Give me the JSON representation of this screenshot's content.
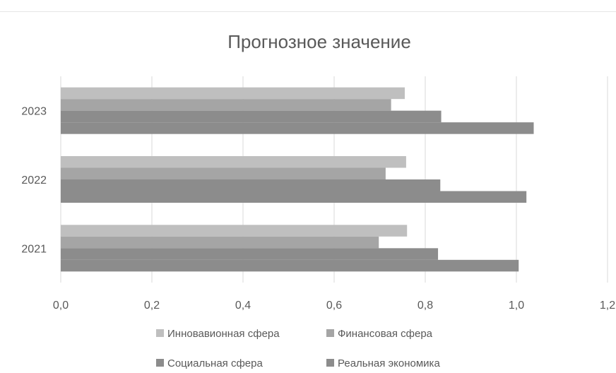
{
  "chart_data": {
    "type": "bar",
    "orientation": "horizontal",
    "title": "Прогнозное значение",
    "categories": [
      "2021",
      "2022",
      "2023"
    ],
    "series": [
      {
        "name": "Инновавионная сфера",
        "values": [
          0.76,
          0.758,
          0.755
        ],
        "color": "#bfbfbf"
      },
      {
        "name": "Финансовая сфера",
        "values": [
          0.698,
          0.713,
          0.725
        ],
        "color": "#a5a5a5"
      },
      {
        "name": "Социальная сфера",
        "values": [
          0.828,
          0.833,
          0.835
        ],
        "color": "#8c8c8c"
      },
      {
        "name": "Реальная экономика",
        "values": [
          1.005,
          1.022,
          1.038
        ],
        "color": "#8c8c8c"
      }
    ],
    "x_ticks": [
      "0,0",
      "0,2",
      "0,4",
      "0,6",
      "0,8",
      "1,0",
      "1,2"
    ],
    "xlim": [
      0,
      1.2
    ],
    "xlabel": "",
    "ylabel": "",
    "grid": "vertical",
    "legend": "bottom"
  }
}
